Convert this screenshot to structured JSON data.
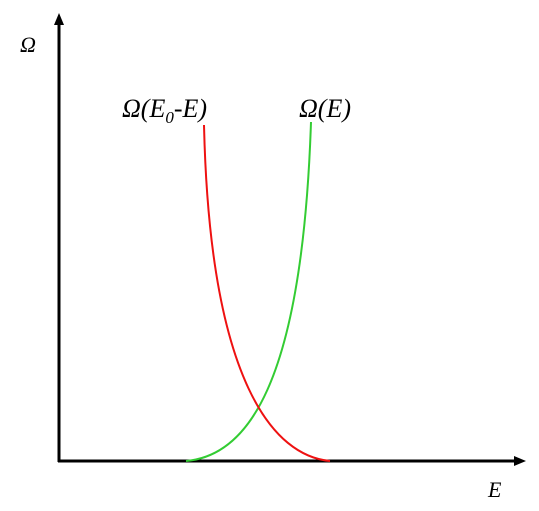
{
  "axes": {
    "y_label": "Ω",
    "x_label": "E"
  },
  "curves": [
    {
      "label": {
        "main": "Ω(E",
        "subscript": "0",
        "rest": "-E)"
      }
    },
    {
      "label": "Ω(E)"
    }
  ]
}
